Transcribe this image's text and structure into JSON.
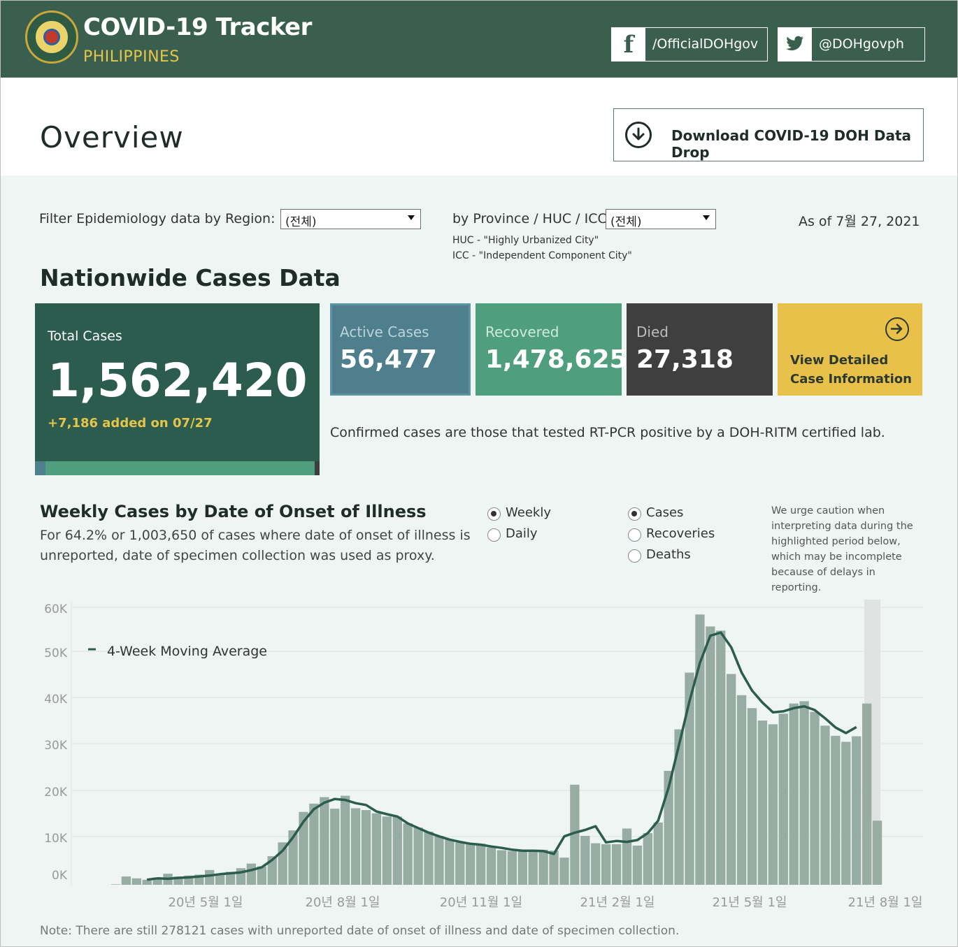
{
  "header": {
    "title": "COVID-19 Tracker",
    "subtitle": "PHILIPPINES",
    "facebook": "/OfficialDOHgov",
    "twitter": "@DOHgovph"
  },
  "overview": {
    "title": "Overview",
    "download_label": "Download COVID-19 DOH Data Drop"
  },
  "filters": {
    "region_label": "Filter Epidemiology data by Region:",
    "region_value": "(전체)",
    "province_label": "by Province / HUC / ICC:",
    "province_value": "(전체)",
    "huc_note": "HUC - \"Highly Urbanized City\"",
    "icc_note": "ICC - \"Independent Component City\"",
    "as_of": "As of 7월 27, 2021"
  },
  "nationwide": {
    "title": "Nationwide Cases Data",
    "total_label": "Total Cases",
    "total_value": "1,562,420",
    "added": "+7,186 added on 07/27",
    "active_label": "Active Cases",
    "active_value": "56,477",
    "recovered_label": "Recovered",
    "recovered_value": "1,478,625",
    "died_label": "Died",
    "died_value": "27,318",
    "view_line1": "View Detailed",
    "view_line2": "Case Information",
    "confirm_note": "Confirmed cases are those that tested RT-PCR positive by a DOH-RITM certified lab."
  },
  "weekly": {
    "title": "Weekly Cases by Date of Onset of Illness",
    "desc": "For 64.2% or 1,003,650 of cases where date of onset of illness is unreported, date of specimen collection was used as proxy.",
    "period_options": [
      "Weekly",
      "Daily"
    ],
    "period_selected": "Weekly",
    "metric_options": [
      "Cases",
      "Recoveries",
      "Deaths"
    ],
    "metric_selected": "Cases",
    "caution": "We urge caution when interpreting data during the highlighted period below, which may be incomplete because of delays in reporting.",
    "footnote": "Note: There are still 278121 cases with unreported date of onset of illness and date of specimen collection."
  },
  "colors": {
    "header_bg": "#3a5f4e",
    "accent_yellow": "#e6c54a",
    "total_card": "#2b5c4d",
    "active_card": "#4f7f8c",
    "recovered_card": "#4f9f7e",
    "died_card": "#3f3f3f",
    "view_card": "#e8c04a",
    "bar": "#97ada4",
    "line": "#2b5c4d"
  },
  "icons": {
    "facebook": "facebook-icon",
    "twitter": "twitter-icon",
    "download": "download-circle-icon",
    "arrow": "arrow-right-circle-icon"
  },
  "chart_data": {
    "type": "bar",
    "title": "",
    "xlabel": "",
    "ylabel": "",
    "ylim": [
      0,
      60000
    ],
    "yticks": [
      "0K",
      "10K",
      "20K",
      "30K",
      "40K",
      "50K",
      "60K"
    ],
    "xtick_labels": [
      "20년 5월 1일",
      "20년 8월 1일",
      "20년 11월 1일",
      "21년 2월 1일",
      "21년 5월 1일",
      "21년 8월 1일"
    ],
    "legend": "4-Week Moving Average",
    "highlight": "last incomplete weeks (reporting delay)",
    "series": [
      {
        "name": "Cases",
        "values": [
          100,
          1800,
          1400,
          1100,
          1600,
          2400,
          1800,
          2000,
          2200,
          3200,
          2400,
          2800,
          3600,
          4600,
          4000,
          6200,
          9200,
          11800,
          15800,
          17600,
          19000,
          16500,
          19300,
          16600,
          16200,
          15500,
          14800,
          14800,
          13300,
          12400,
          11500,
          10600,
          9800,
          9200,
          9000,
          8900,
          8100,
          7500,
          7300,
          7600,
          7600,
          7600,
          7400,
          5900,
          21700,
          10600,
          9000,
          8800,
          8800,
          12200,
          8500,
          11200,
          13500,
          24700,
          33700,
          46000,
          58600,
          56000,
          55100,
          45700,
          41100,
          38300,
          35600,
          34800,
          37100,
          39300,
          39800,
          37500,
          34500,
          32300,
          31000,
          32200,
          39300,
          13900
        ]
      },
      {
        "name": "4-Week Moving Average",
        "values": [
          null,
          null,
          null,
          1100,
          1400,
          1300,
          1500,
          1600,
          1800,
          2000,
          2300,
          2500,
          2700,
          3200,
          3800,
          5400,
          7400,
          10300,
          13700,
          16400,
          17800,
          18600,
          18400,
          17700,
          17300,
          15900,
          15300,
          14800,
          13300,
          12300,
          11300,
          10500,
          9800,
          9300,
          8900,
          8700,
          8300,
          8000,
          7600,
          7400,
          7400,
          7300,
          6700,
          10500,
          11300,
          11900,
          12700,
          9200,
          9500,
          9300,
          9700,
          11200,
          13900,
          21100,
          30400,
          39800,
          48100,
          54000,
          54700,
          51500,
          46000,
          42100,
          39500,
          37400,
          37600,
          38300,
          38700,
          37900,
          36100,
          34100,
          32900,
          34200,
          null,
          null
        ]
      }
    ]
  }
}
